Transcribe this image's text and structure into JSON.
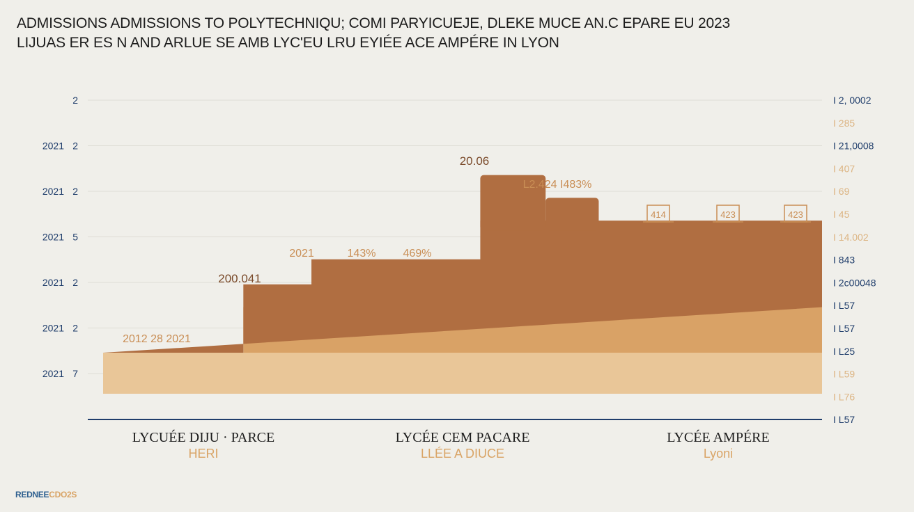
{
  "title": {
    "line1": "ADMISSIONS ADMISSIONS TO POLYTECHNIQU; COMI PARYICUEJE, DLEKE MUCE AN.C EPARE EU 2023",
    "line2": "LIJUAS ER ES N AND ARLUE SE AMB LYC'EU LRU EYIÉE ACE AMPÉRE IN LYON"
  },
  "footer": {
    "part1": "REDNEE",
    "part2": "CDO2S"
  },
  "colors": {
    "background": "#f0efea",
    "title": "#1c1c1c",
    "left_axis_text": "#1f3d6b",
    "right_axis_dark": "#1f3d6b",
    "right_axis_light": "#dcb482",
    "gridline": "#dedcd5",
    "baseline": "#1f3d6b",
    "band_dark": "#b06e41",
    "band_mid": "#d9a266",
    "band_light": "#e9c698",
    "annotation": "#c98e55",
    "category_name": "#1c1c1c",
    "category_sub": "#d9a466"
  },
  "chart_data": {
    "type": "area",
    "title": "",
    "xlabel": "",
    "ylabel": "",
    "grid": true,
    "ylim": [
      0,
      7
    ],
    "categories": [
      {
        "name": "LYCUÉE DIJU · PARCE",
        "sub": "HERI"
      },
      {
        "name": "LYCÉE CEM PACARE",
        "sub": "LLÉE A DIUCE"
      },
      {
        "name": "LYCÉE AMPÉRE",
        "sub": "Lyoni"
      }
    ],
    "left_axis": [
      {
        "year": "",
        "value": "2"
      },
      {
        "year": "2021",
        "value": "2"
      },
      {
        "year": "2021",
        "value": "2"
      },
      {
        "year": "2021",
        "value": "5"
      },
      {
        "year": "2021",
        "value": "2"
      },
      {
        "year": "2021",
        "value": "2"
      },
      {
        "year": "2021",
        "value": "7"
      }
    ],
    "right_axis": [
      {
        "text": "I 2, 0002",
        "tone": "dark"
      },
      {
        "text": "I 285",
        "tone": "light"
      },
      {
        "text": "I 21,0008",
        "tone": "dark"
      },
      {
        "text": "I 407",
        "tone": "light"
      },
      {
        "text": "I 69",
        "tone": "light"
      },
      {
        "text": "I 45",
        "tone": "light"
      },
      {
        "text": "I 14.002",
        "tone": "light"
      },
      {
        "text": "I 843",
        "tone": "dark"
      },
      {
        "text": "I 2c00048",
        "tone": "dark"
      },
      {
        "text": "I L57",
        "tone": "dark"
      },
      {
        "text": "I L57",
        "tone": "dark"
      },
      {
        "text": "I L25",
        "tone": "dark"
      },
      {
        "text": "I L59",
        "tone": "light"
      },
      {
        "text": "I L76",
        "tone": "light"
      },
      {
        "text": "I L57",
        "tone": "dark"
      }
    ],
    "x": [
      0,
      1.03,
      1.53,
      2.77,
      3.25,
      3.64,
      4.37,
      5.28
    ],
    "series": [
      {
        "band": "light",
        "values": [
          0.9,
          0.9,
          0.9,
          0.9,
          0.9,
          0.9,
          0.9,
          0.9
        ]
      },
      {
        "band": "mid",
        "values": [
          0.9,
          1.9,
          1.9,
          1.9,
          1.9,
          1.9,
          1.9,
          1.9
        ]
      },
      {
        "band": "dark",
        "values": [
          0.9,
          2.4,
          2.95,
          3.8,
          3.8,
          3.8,
          3.8,
          3.8
        ]
      },
      {
        "band": "dark",
        "values": [
          null,
          null,
          null,
          4.8,
          4.3,
          3.8,
          3.8,
          3.8
        ]
      }
    ],
    "annotations": [
      {
        "text": "2012 28 2021"
      },
      {
        "text": "200.041"
      },
      {
        "text": "2021"
      },
      {
        "text": "143%"
      },
      {
        "text": "469%"
      },
      {
        "text": "20.06"
      },
      {
        "text": "L2.424  I483%"
      },
      {
        "text": "414",
        "boxed": true
      },
      {
        "text": "423",
        "boxed": true
      },
      {
        "text": "423",
        "boxed": true
      }
    ]
  }
}
